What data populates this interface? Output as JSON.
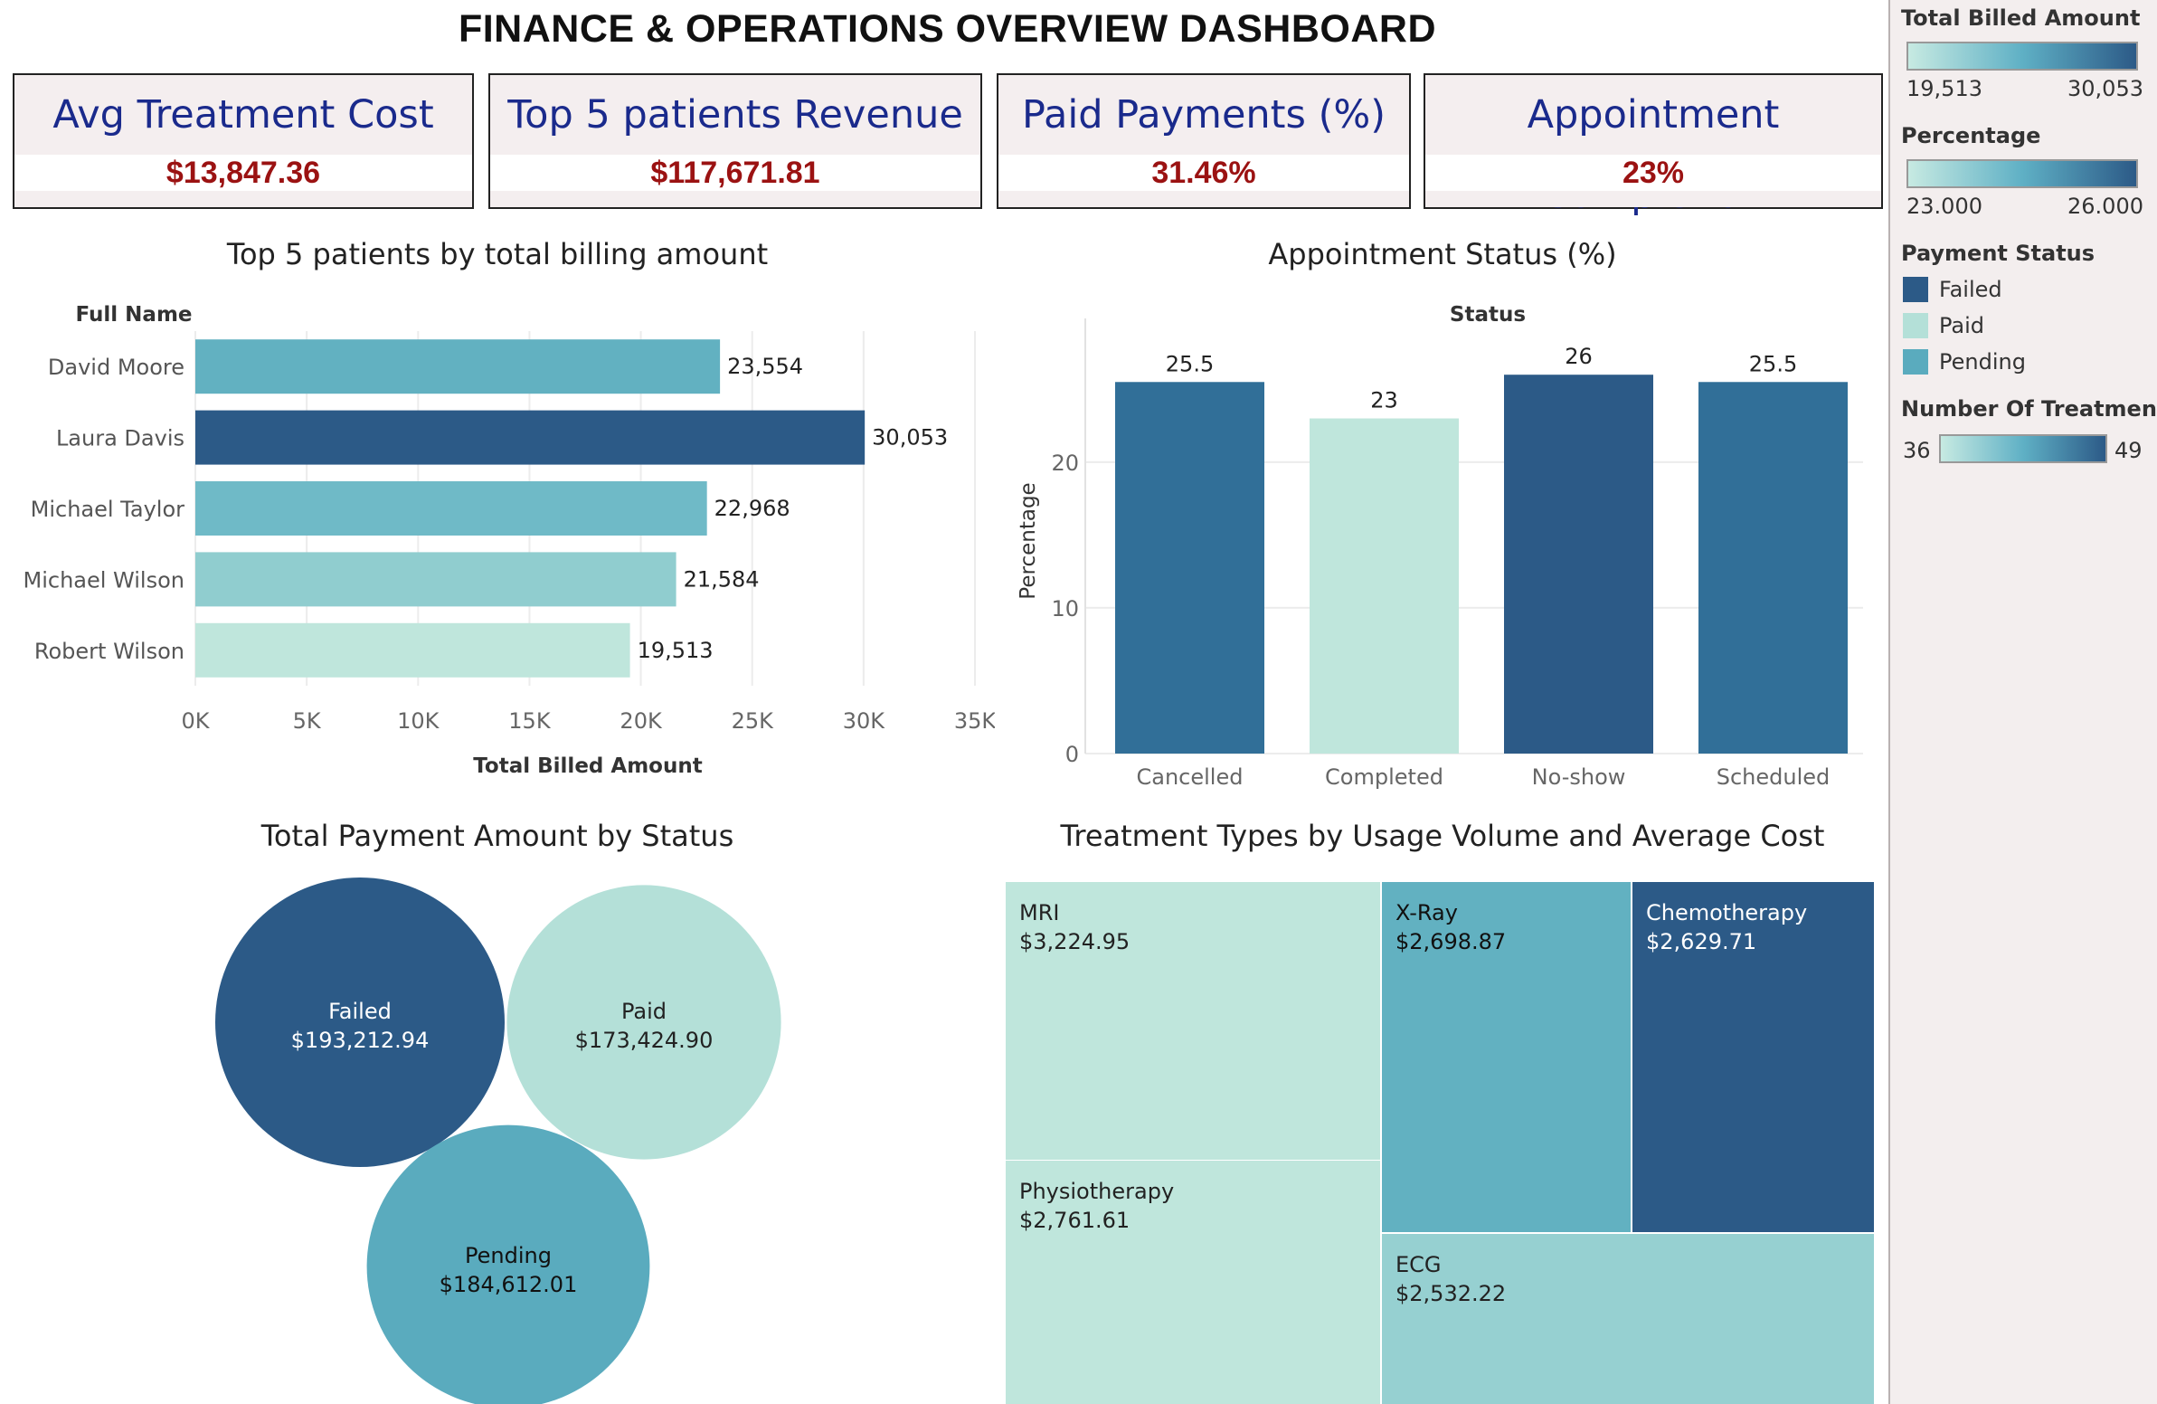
{
  "dashboard_title": "FINANCE & OPERATIONS OVERVIEW DASHBOARD",
  "kpis": [
    {
      "label": "Avg Treatment Cost",
      "value": "$13,847.36"
    },
    {
      "label": "Top 5 patients Revenue",
      "value": "$117,671.81"
    },
    {
      "label": "Paid Payments (%)",
      "value": "31.46%"
    },
    {
      "label": "Appointment Completion",
      "value": "23%"
    }
  ],
  "colors": {
    "failed": "#2c5a87",
    "paid": "#b4e0d8",
    "pending": "#5aabbe",
    "kpi_header_text": "#1a2a8c",
    "kpi_value_text": "#9b1212"
  },
  "legends": {
    "billed": {
      "title": "Total Billed Amount",
      "min": "19,513",
      "max": "30,053"
    },
    "percentage": {
      "title": "Percentage",
      "min": "23.000",
      "max": "26.000"
    },
    "payment_status": {
      "title": "Payment Status",
      "items": [
        {
          "label": "Failed",
          "color": "#2c5a87"
        },
        {
          "label": "Paid",
          "color": "#b4e0d8"
        },
        {
          "label": "Pending",
          "color": "#5aabbe"
        }
      ]
    },
    "treatments": {
      "title": "Number Of Treatments",
      "min": "36",
      "max": "49"
    }
  },
  "chart_data": [
    {
      "type": "bar",
      "orientation": "horizontal",
      "title": "Top 5 patients by total billing amount",
      "ylabel": "Full Name",
      "xlabel": "Total Billed Amount",
      "categories": [
        "David Moore",
        "Laura Davis",
        "Michael Taylor",
        "Michael Wilson",
        "Robert Wilson"
      ],
      "values": [
        23554,
        30053,
        22968,
        21584,
        19513
      ],
      "value_labels": [
        "23,554",
        "30,053",
        "22,968",
        "21,584",
        "19,513"
      ],
      "colors": [
        "#62b1c1",
        "#2c5a87",
        "#6fbac7",
        "#90cdcf",
        "#bfe6dc"
      ],
      "xlim": [
        0,
        35000
      ],
      "xticks": [
        0,
        5000,
        10000,
        15000,
        20000,
        25000,
        30000,
        35000
      ],
      "xtick_labels": [
        "0K",
        "5K",
        "10K",
        "15K",
        "20K",
        "25K",
        "30K",
        "35K"
      ],
      "grid": "vertical"
    },
    {
      "type": "bar",
      "title": "Appointment Status (%)",
      "xlabel": "Status",
      "ylabel": "Percentage",
      "categories": [
        "Cancelled",
        "Completed",
        "No-show",
        "Scheduled"
      ],
      "values": [
        25.5,
        23,
        26,
        25.5
      ],
      "value_labels": [
        "25.5",
        "23",
        "26",
        "25.5"
      ],
      "colors": [
        "#316f98",
        "#bfe6dc",
        "#2c5a87",
        "#316f98"
      ],
      "ylim": [
        0,
        28
      ],
      "yticks": [
        0,
        10,
        20
      ],
      "ytick_labels": [
        "0",
        "10",
        "20"
      ],
      "grid": "horizontal"
    },
    {
      "type": "bubble",
      "title": "Total Payment Amount by Status",
      "categories": [
        "Failed",
        "Paid",
        "Pending"
      ],
      "values": [
        193212.94,
        173424.9,
        184612.01
      ],
      "value_labels": [
        "$193,212.94",
        "$173,424.90",
        "$184,612.01"
      ],
      "colors": [
        "#2c5a87",
        "#b4e0d8",
        "#5aabbe"
      ]
    },
    {
      "type": "treemap",
      "title": "Treatment Types by Usage Volume and Average Cost",
      "categories": [
        "MRI",
        "Physiotherapy",
        "X-Ray",
        "Chemotherapy",
        "ECG"
      ],
      "values": [
        3224.95,
        2761.61,
        2698.87,
        2629.71,
        2532.22
      ],
      "value_labels": [
        "$3,224.95",
        "$2,761.61",
        "$2,698.87",
        "$2,629.71",
        "$2,532.22"
      ],
      "colors": [
        "#bfe6dc",
        "#bfe6dc",
        "#62b1c1",
        "#2c5a87",
        "#96d0d1"
      ]
    }
  ]
}
